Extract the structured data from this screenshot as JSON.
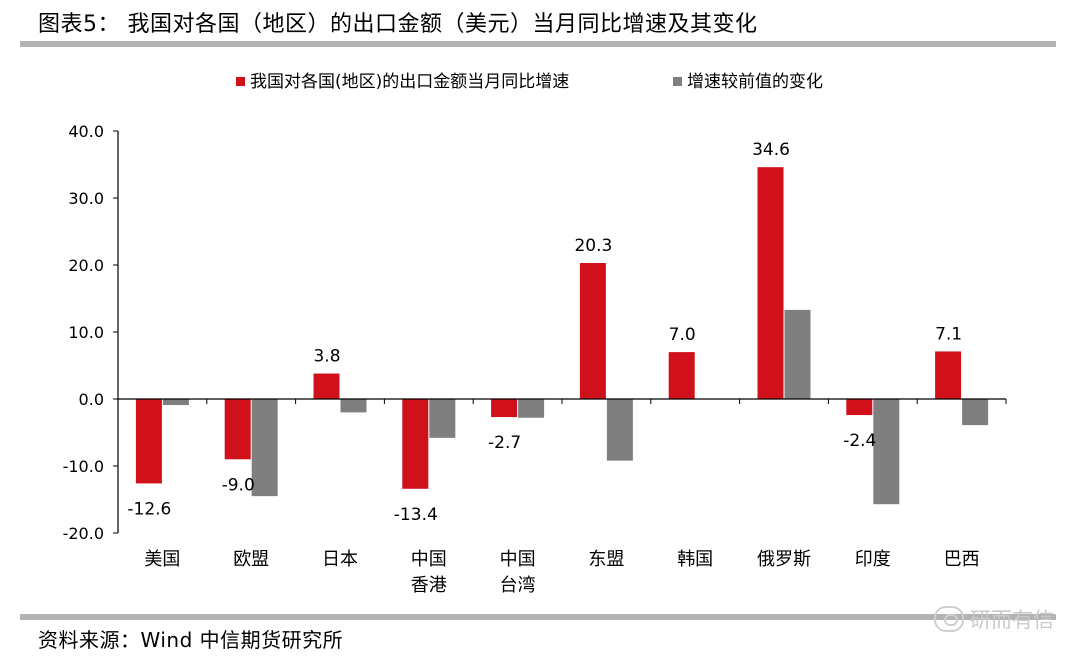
{
  "header": {
    "title": "图表5：  我国对各国（地区）的出口金额（美元）当月同比增速及其变化"
  },
  "footer": {
    "source": "资料来源：Wind  中信期货研究所"
  },
  "watermark": {
    "text": "研而有信"
  },
  "chart_data": {
    "type": "bar",
    "categories": [
      [
        "美国"
      ],
      [
        "欧盟"
      ],
      [
        "日本"
      ],
      [
        "中国",
        "香港"
      ],
      [
        "中国",
        "台湾"
      ],
      [
        "东盟"
      ],
      [
        "韩国"
      ],
      [
        "俄罗斯"
      ],
      [
        "印度"
      ],
      [
        "巴西"
      ]
    ],
    "series": [
      {
        "name": "我国对各国(地区)的出口金额当月同比增速",
        "color": "#d0111b",
        "values": [
          -12.6,
          -9.0,
          3.8,
          -13.4,
          -2.7,
          20.3,
          7.0,
          34.6,
          -2.4,
          7.1
        ],
        "labels": [
          "-12.6",
          "-9.0",
          "3.8",
          "-13.4",
          "-2.7",
          "20.3",
          "7.0",
          "34.6",
          "-2.4",
          "7.1"
        ]
      },
      {
        "name": "增速较前值的变化",
        "color": "#7f7f7f",
        "values": [
          -0.9,
          -14.5,
          -2.0,
          -5.8,
          -2.8,
          -9.2,
          0.0,
          13.3,
          -15.7,
          -3.9
        ]
      }
    ],
    "yticks": [
      "40.0",
      "30.0",
      "20.0",
      "10.0",
      "0.0",
      "-10.0",
      "-20.0"
    ],
    "ylim": [
      -20,
      40
    ],
    "legend": "top"
  }
}
